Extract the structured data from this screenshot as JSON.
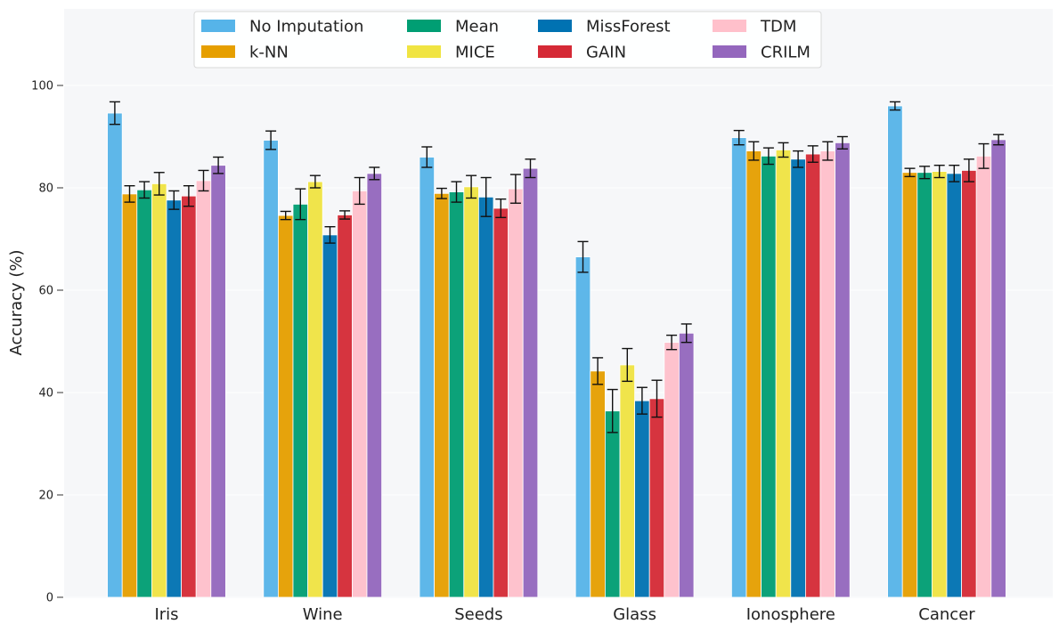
{
  "chart_data": {
    "type": "bar",
    "ylabel": "Accuracy (%)",
    "xlabel": "",
    "ylim": [
      0,
      114
    ],
    "yticks": [
      0,
      20,
      40,
      60,
      80,
      100
    ],
    "grid": true,
    "legend_position": "top-center",
    "categories": [
      "Iris",
      "Wine",
      "Seeds",
      "Glass",
      "Ionosphere",
      "Cancer"
    ],
    "series": [
      {
        "name": "No Imputation",
        "color": "#56B4E9",
        "values": [
          94.6,
          89.3,
          86.0,
          66.5,
          89.8,
          96.0
        ],
        "errors": [
          2.2,
          1.8,
          2.0,
          3.0,
          1.4,
          0.8
        ]
      },
      {
        "name": "k-NN",
        "color": "#E69F00",
        "values": [
          78.8,
          74.6,
          78.9,
          44.2,
          87.2,
          83.0
        ],
        "errors": [
          1.6,
          0.8,
          1.0,
          2.6,
          1.8,
          0.8
        ]
      },
      {
        "name": "Mean",
        "color": "#009E73",
        "values": [
          79.6,
          76.8,
          79.2,
          36.4,
          86.2,
          83.0
        ],
        "errors": [
          1.6,
          3.0,
          2.0,
          4.2,
          1.6,
          1.2
        ]
      },
      {
        "name": "MICE",
        "color": "#F0E442",
        "values": [
          80.8,
          81.2,
          80.2,
          45.4,
          87.4,
          83.2
        ],
        "errors": [
          2.2,
          1.2,
          2.2,
          3.2,
          1.4,
          1.2
        ]
      },
      {
        "name": "MissForest",
        "color": "#0072B2",
        "values": [
          77.6,
          70.8,
          78.2,
          38.4,
          85.6,
          82.8
        ],
        "errors": [
          1.8,
          1.6,
          3.8,
          2.6,
          1.6,
          1.6
        ]
      },
      {
        "name": "GAIN",
        "color": "#D52A36",
        "values": [
          78.4,
          74.7,
          76.0,
          38.8,
          86.6,
          83.4
        ],
        "errors": [
          2.0,
          0.8,
          1.8,
          3.6,
          1.6,
          2.2
        ]
      },
      {
        "name": "TDM",
        "color": "#FFC0CB",
        "values": [
          81.4,
          79.4,
          79.8,
          49.8,
          87.2,
          86.2
        ],
        "errors": [
          2.0,
          2.6,
          2.8,
          1.4,
          1.8,
          2.4
        ]
      },
      {
        "name": "CRILM",
        "color": "#9467BD",
        "values": [
          84.4,
          82.8,
          83.8,
          51.6,
          88.8,
          89.4
        ],
        "errors": [
          1.6,
          1.2,
          1.8,
          1.8,
          1.2,
          1.0
        ]
      }
    ]
  }
}
